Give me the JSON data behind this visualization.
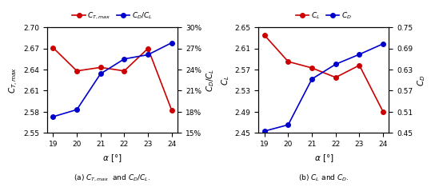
{
  "alpha": [
    19,
    20,
    21,
    22,
    23,
    24
  ],
  "subplot_a": {
    "ct_max": [
      2.671,
      2.638,
      2.643,
      2.638,
      2.67,
      2.582
    ],
    "cd_cl": [
      0.173,
      0.183,
      0.234,
      0.255,
      0.261,
      0.278
    ],
    "ct_ylim": [
      2.55,
      2.7
    ],
    "ct_yticks": [
      2.55,
      2.58,
      2.61,
      2.64,
      2.67,
      2.7
    ],
    "cd_cl_ylim": [
      0.15,
      0.3
    ],
    "cd_cl_yticks": [
      0.15,
      0.18,
      0.21,
      0.24,
      0.27,
      0.3
    ],
    "cd_cl_yticklabels": [
      "15%",
      "18%",
      "21%",
      "24%",
      "27%",
      "30%"
    ],
    "ylabel_left": "$C_{T,max}$",
    "ylabel_right": "$C_D/C_L$",
    "legend_labels": [
      "$C_{T,max}$",
      "$C_D/C_L$"
    ],
    "caption": "(a) $C_{T,max}$  and $C_D/C_L$."
  },
  "subplot_b": {
    "cl": [
      2.635,
      2.585,
      2.573,
      2.555,
      2.578,
      2.49
    ],
    "cd": [
      0.455,
      0.473,
      0.603,
      0.645,
      0.673,
      0.703
    ],
    "cl_ylim": [
      2.45,
      2.65
    ],
    "cl_yticks": [
      2.45,
      2.49,
      2.53,
      2.57,
      2.61,
      2.65
    ],
    "cd_ylim": [
      0.45,
      0.75
    ],
    "cd_yticks": [
      0.45,
      0.51,
      0.57,
      0.63,
      0.69,
      0.75
    ],
    "ylabel_left": "$C_L$",
    "ylabel_right": "$C_D$",
    "legend_labels": [
      "$C_L$",
      "$C_D$"
    ],
    "caption": "(b) $C_L$ and $C_D$."
  },
  "xlabel": "$\\alpha$ [°]",
  "xticks": [
    19,
    20,
    21,
    22,
    23,
    24
  ],
  "red_color": "#cc0000",
  "blue_color": "#0000cc",
  "markersize": 4,
  "linewidth": 1.2
}
